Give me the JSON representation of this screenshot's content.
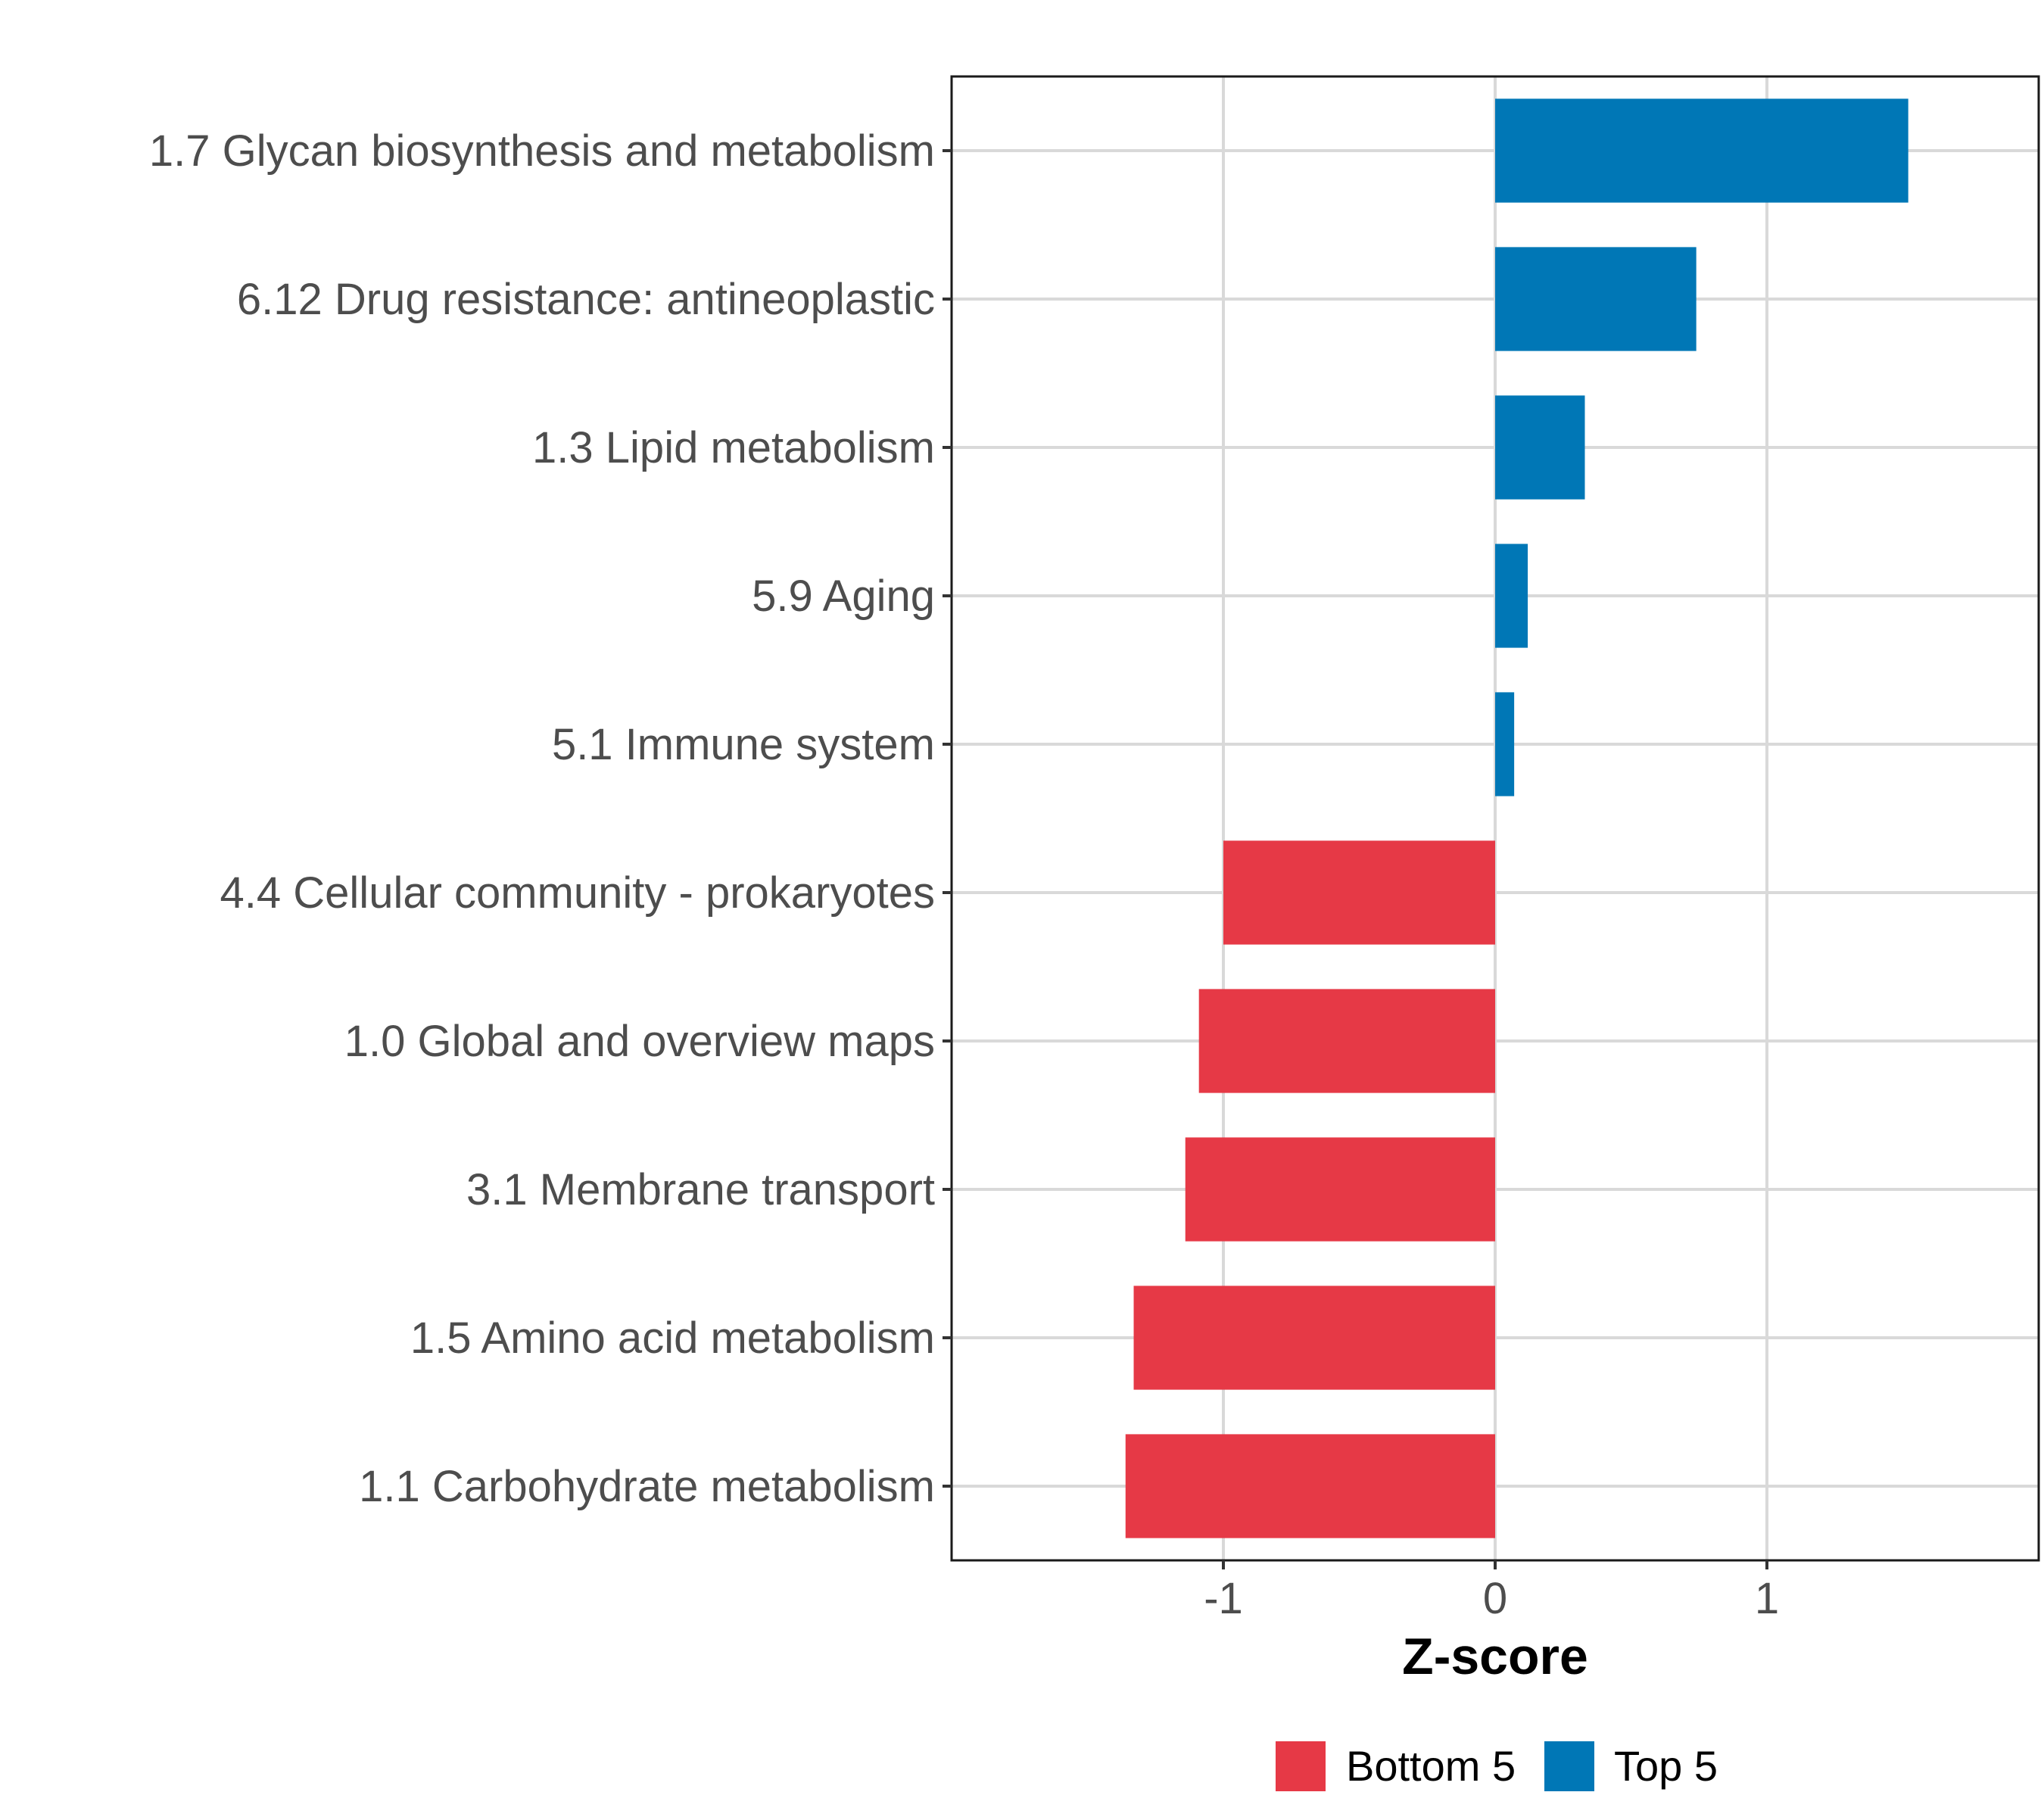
{
  "chart_data": {
    "type": "bar",
    "orientation": "horizontal",
    "title": "",
    "xlabel": "Z-score",
    "ylabel": "",
    "xlim": [
      -2,
      2
    ],
    "xticks": [
      -1,
      0,
      1
    ],
    "xtick_labels": [
      "-1",
      "0",
      "1"
    ],
    "grid": true,
    "legend_position": "bottom",
    "categories": [
      "1.7 Glycan biosynthesis and metabolism",
      "6.12 Drug resistance: antineoplastic",
      "1.3 Lipid metabolism",
      "5.9 Aging",
      "5.1 Immune system",
      "4.4 Cellular community - prokaryotes",
      "1.0 Global and overview maps",
      "3.1 Membrane transport",
      "1.5 Amino acid metabolism",
      "1.1 Carbohydrate metabolism"
    ],
    "values": [
      1.52,
      0.74,
      0.33,
      0.12,
      0.07,
      -1.0,
      -1.09,
      -1.14,
      -1.33,
      -1.36
    ],
    "groups": [
      "Top 5",
      "Top 5",
      "Top 5",
      "Top 5",
      "Top 5",
      "Bottom 5",
      "Bottom 5",
      "Bottom 5",
      "Bottom 5",
      "Bottom 5"
    ],
    "legend": [
      {
        "name": "Bottom 5",
        "color": "#e63946"
      },
      {
        "name": "Top 5",
        "color": "#0077b6"
      }
    ]
  }
}
